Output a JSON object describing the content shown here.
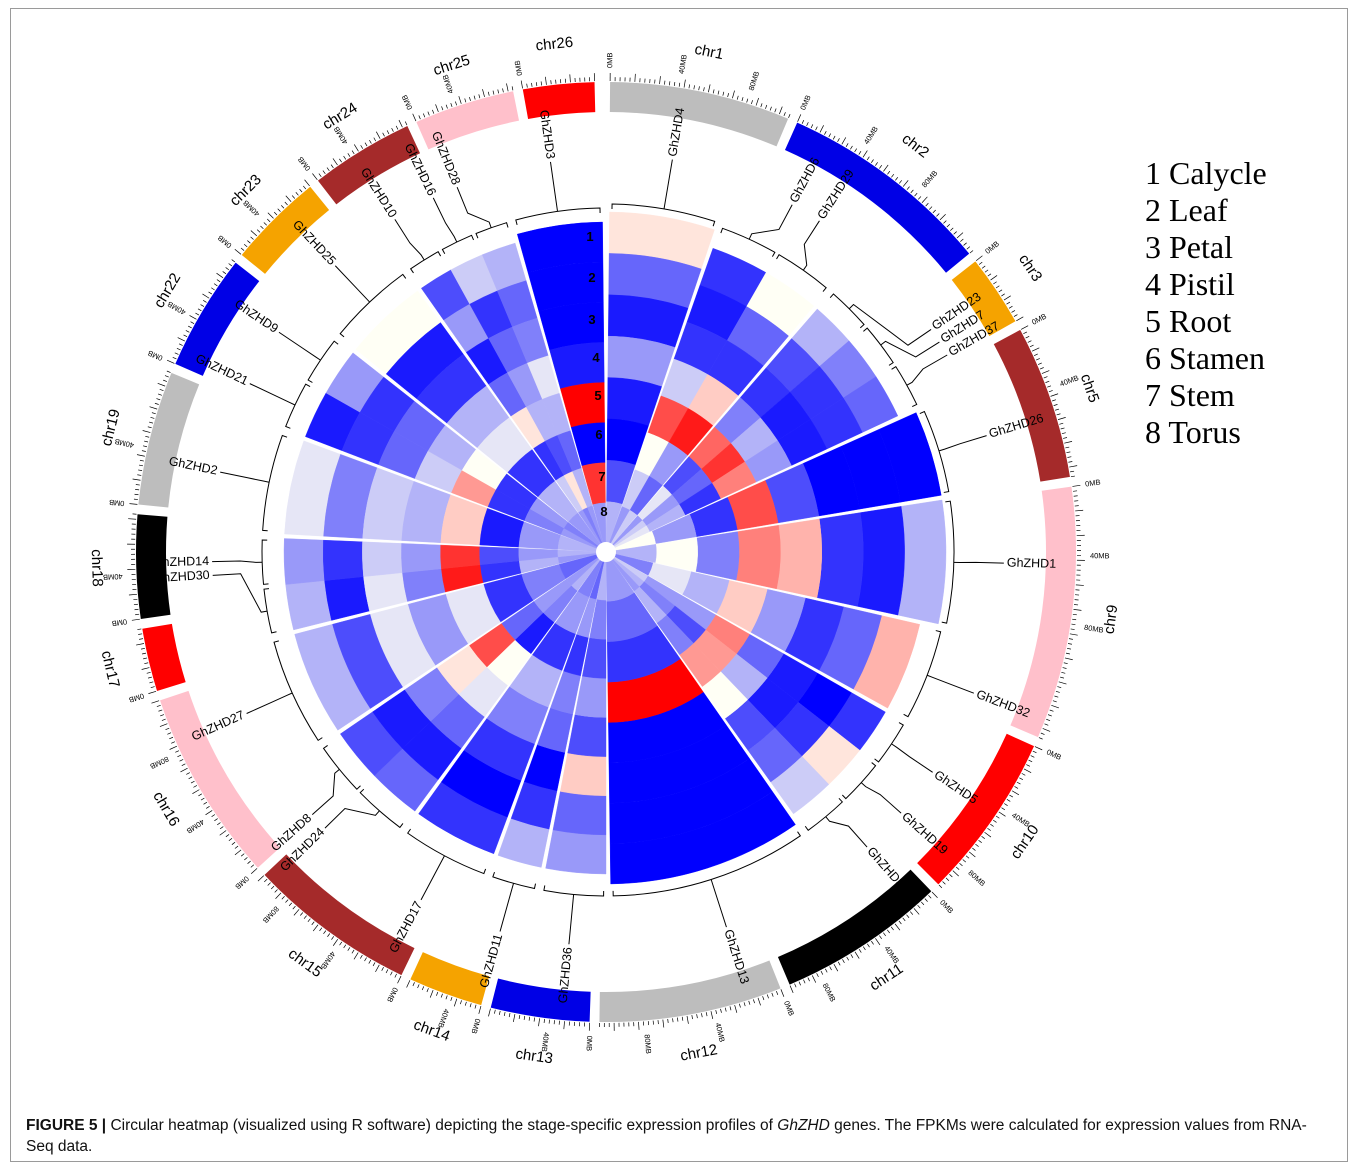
{
  "legend": [
    {
      "num": "1",
      "label": "Calycle"
    },
    {
      "num": "2",
      "label": "Leaf"
    },
    {
      "num": "3",
      "label": "Petal"
    },
    {
      "num": "4",
      "label": "Pistil"
    },
    {
      "num": "5",
      "label": "Root"
    },
    {
      "num": "6",
      "label": "Stamen"
    },
    {
      "num": "7",
      "label": "Stem"
    },
    {
      "num": "8",
      "label": "Torus"
    }
  ],
  "track_numbers": [
    "1",
    "2",
    "3",
    "4",
    "5",
    "6",
    "7",
    "8"
  ],
  "tick_unit": "MB",
  "chromosomes": [
    {
      "name": "chr1",
      "color": "#bdbdbd",
      "ticks": [
        "0MB",
        "40MB",
        "80MB"
      ]
    },
    {
      "name": "chr2",
      "color": "#0000e6",
      "ticks": [
        "0MB",
        "40MB",
        "80MB"
      ]
    },
    {
      "name": "chr3",
      "color": "#f5a300",
      "ticks": [
        "0MB"
      ]
    },
    {
      "name": "chr5",
      "color": "#a52a2a",
      "ticks": [
        "0MB",
        "40MB"
      ]
    },
    {
      "name": "chr9",
      "color": "#ffc0cb",
      "ticks": [
        "0MB",
        "40MB",
        "80MB"
      ]
    },
    {
      "name": "chr10",
      "color": "#ff0000",
      "ticks": [
        "0MB",
        "40MB",
        "80MB"
      ]
    },
    {
      "name": "chr11",
      "color": "#000000",
      "ticks": [
        "0MB",
        "40MB",
        "80MB"
      ]
    },
    {
      "name": "chr12",
      "color": "#bdbdbd",
      "ticks": [
        "0MB",
        "40MB",
        "80MB"
      ]
    },
    {
      "name": "chr13",
      "color": "#0000e6",
      "ticks": [
        "0MB",
        "40MB"
      ]
    },
    {
      "name": "chr14",
      "color": "#f5a300",
      "ticks": [
        "0MB",
        "40MB"
      ]
    },
    {
      "name": "chr15",
      "color": "#a52a2a",
      "ticks": [
        "0MB",
        "40MB",
        "80MB"
      ]
    },
    {
      "name": "chr16",
      "color": "#ffc0cb",
      "ticks": [
        "0MB",
        "40MB",
        "80MB"
      ]
    },
    {
      "name": "chr17",
      "color": "#ff0000",
      "ticks": [
        "0MB"
      ]
    },
    {
      "name": "chr18",
      "color": "#000000",
      "ticks": [
        "0MB",
        "40MB"
      ]
    },
    {
      "name": "chr19",
      "color": "#bdbdbd",
      "ticks": [
        "0MB",
        "40MB"
      ]
    },
    {
      "name": "chr22",
      "color": "#0000e6",
      "ticks": [
        "0MB",
        "40MB"
      ]
    },
    {
      "name": "chr23",
      "color": "#f5a300",
      "ticks": [
        "0MB",
        "40MB"
      ]
    },
    {
      "name": "chr24",
      "color": "#a52a2a",
      "ticks": [
        "0MB",
        "40MB"
      ]
    },
    {
      "name": "chr25",
      "color": "#ffc0cb",
      "ticks": [
        "0MB",
        "40MB"
      ]
    },
    {
      "name": "chr26",
      "color": "#ff0000",
      "ticks": [
        "0MB"
      ]
    }
  ],
  "genes": [
    {
      "name": "GhZHD4",
      "chr": "chr1",
      "expression": [
        0.55,
        0.2,
        0.05,
        0.3,
        0.05,
        0.0,
        0.15,
        0.35
      ]
    },
    {
      "name": "GhZHD6",
      "chr": "chr2",
      "expression": [
        0.1,
        0.05,
        0.1,
        0.4,
        0.85,
        0.5,
        0.4,
        0.3
      ]
    },
    {
      "name": "GhZHD29",
      "chr": "chr2",
      "expression": [
        0.5,
        0.2,
        0.1,
        0.6,
        0.95,
        0.3,
        0.2,
        0.4
      ]
    },
    {
      "name": "GhZHD23",
      "chr": "chr5",
      "expression": [
        0.35,
        0.15,
        0.1,
        0.25,
        0.8,
        0.15,
        0.45,
        0.3
      ]
    },
    {
      "name": "GhZHD7",
      "chr": "chr5",
      "expression": [
        0.25,
        0.1,
        0.05,
        0.35,
        0.9,
        0.2,
        0.3,
        0.4
      ]
    },
    {
      "name": "GhZHD37",
      "chr": "chr5",
      "expression": [
        0.2,
        0.1,
        0.05,
        0.3,
        0.75,
        0.1,
        0.35,
        0.45
      ]
    },
    {
      "name": "GhZHD26",
      "chr": "chr9",
      "expression": [
        0.0,
        0.0,
        0.0,
        0.15,
        0.85,
        0.1,
        0.3,
        0.5
      ]
    },
    {
      "name": "GhZHD1",
      "chr": "chr9",
      "expression": [
        0.35,
        0.05,
        0.1,
        0.65,
        0.75,
        0.25,
        0.5,
        0.35
      ]
    },
    {
      "name": "GhZHD32",
      "chr": "chr10",
      "expression": [
        0.65,
        0.2,
        0.1,
        0.3,
        0.6,
        0.35,
        0.45,
        0.25
      ]
    },
    {
      "name": "GhZHD5",
      "chr": "chr10",
      "expression": [
        0.1,
        0.0,
        0.05,
        0.2,
        0.75,
        0.3,
        0.3,
        0.4
      ]
    },
    {
      "name": "GhZHD19",
      "chr": "chr11",
      "expression": [
        0.55,
        0.1,
        0.05,
        0.35,
        0.7,
        0.15,
        0.25,
        0.35
      ]
    },
    {
      "name": "GhZHD31",
      "chr": "chr11",
      "expression": [
        0.4,
        0.2,
        0.15,
        0.5,
        0.7,
        0.25,
        0.35,
        0.3
      ]
    },
    {
      "name": "GhZHD13",
      "chr": "chr12",
      "expression": [
        0.0,
        0.0,
        0.0,
        0.0,
        1.0,
        0.1,
        0.2,
        0.3
      ]
    },
    {
      "name": "GhZHD36",
      "chr": "chr13",
      "expression": [
        0.3,
        0.2,
        0.6,
        0.15,
        0.3,
        0.15,
        0.25,
        0.35
      ]
    },
    {
      "name": "GhZHD11",
      "chr": "chr14",
      "expression": [
        0.35,
        0.1,
        0.0,
        0.2,
        0.25,
        0.1,
        0.3,
        0.2
      ]
    },
    {
      "name": "GhZHD17",
      "chr": "chr15",
      "expression": [
        0.1,
        0.0,
        0.1,
        0.25,
        0.35,
        0.1,
        0.3,
        0.25
      ]
    },
    {
      "name": "GhZHD24",
      "chr": "chr16",
      "expression": [
        0.2,
        0.05,
        0.2,
        0.45,
        0.5,
        0.05,
        0.25,
        0.35
      ]
    },
    {
      "name": "GhZHD8",
      "chr": "chr16",
      "expression": [
        0.15,
        0.05,
        0.25,
        0.55,
        0.85,
        0.2,
        0.3,
        0.3
      ]
    },
    {
      "name": "GhZHD27",
      "chr": "chr17",
      "expression": [
        0.35,
        0.15,
        0.45,
        0.3,
        0.45,
        0.1,
        0.25,
        0.2
      ]
    },
    {
      "name": "GhZHD30",
      "chr": "chr18",
      "expression": [
        0.35,
        0.05,
        0.45,
        0.25,
        0.95,
        0.1,
        0.35,
        0.3
      ]
    },
    {
      "name": "GhZHD14",
      "chr": "chr18",
      "expression": [
        0.3,
        0.1,
        0.4,
        0.3,
        0.9,
        0.15,
        0.3,
        0.35
      ]
    },
    {
      "name": "GhZHD2",
      "chr": "chr19",
      "expression": [
        0.45,
        0.25,
        0.4,
        0.35,
        0.6,
        0.05,
        0.3,
        0.35
      ]
    },
    {
      "name": "GhZHD21",
      "chr": "chr22",
      "expression": [
        0.05,
        0.1,
        0.2,
        0.4,
        0.7,
        0.1,
        0.25,
        0.3
      ]
    },
    {
      "name": "GhZHD9",
      "chr": "chr22",
      "expression": [
        0.3,
        0.1,
        0.2,
        0.35,
        0.5,
        0.1,
        0.3,
        0.25
      ]
    },
    {
      "name": "GhZHD25",
      "chr": "chr23",
      "expression": [
        0.5,
        0.05,
        0.1,
        0.35,
        0.45,
        0.1,
        0.35,
        0.3
      ]
    },
    {
      "name": "GhZHD10",
      "chr": "chr23",
      "expression": [
        0.15,
        0.3,
        0.05,
        0.2,
        0.55,
        0.1,
        0.4,
        0.3
      ]
    },
    {
      "name": "GhZHD16",
      "chr": "chr24",
      "expression": [
        0.4,
        0.1,
        0.2,
        0.3,
        0.35,
        0.15,
        0.55,
        0.25
      ]
    },
    {
      "name": "GhZHD28",
      "chr": "chr24",
      "expression": [
        0.35,
        0.2,
        0.25,
        0.45,
        0.35,
        0.2,
        0.35,
        0.3
      ]
    },
    {
      "name": "GhZHD3",
      "chr": "chr25",
      "expression": [
        0.0,
        0.0,
        0.0,
        0.05,
        1.0,
        0.0,
        0.9,
        0.3
      ]
    }
  ],
  "caption": {
    "fig_label": "FIGURE 5 |",
    "text_before": " Circular heatmap (visualized using R software) depicting the stage-specific expression profiles of ",
    "gene_term": "GhZHD",
    "text_after": " genes. The FPKMs were calculated for expression values from RNA-Seq data."
  }
}
